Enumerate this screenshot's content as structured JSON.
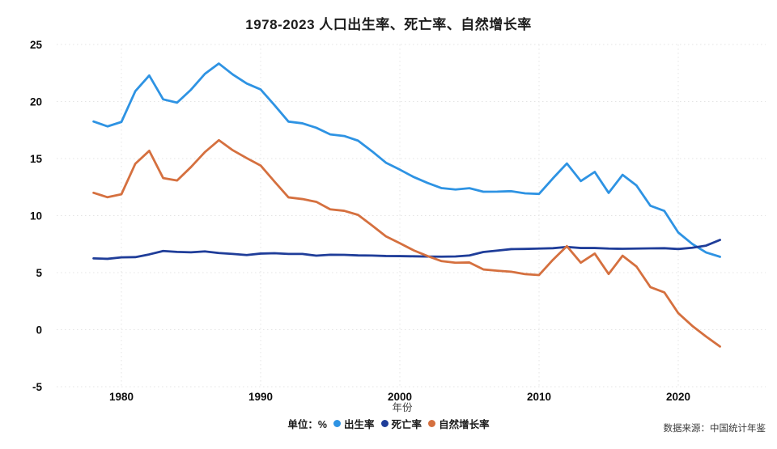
{
  "title": "1978-2023 人口出生率、死亡率、自然增长率",
  "source_note": "数据来源：中国统计年鉴",
  "legend": {
    "unit_label": "单位：%",
    "items": [
      {
        "label": "出生率",
        "color": "#2E93E3"
      },
      {
        "label": "死亡率",
        "color": "#1F3D99"
      },
      {
        "label": "自然增长率",
        "color": "#D5703F"
      }
    ]
  },
  "chart_data": {
    "type": "line",
    "title": "1978-2023 人口出生率、死亡率、自然增长率",
    "xlabel": "年份",
    "ylabel": "",
    "unit": "%",
    "grid": "dotted",
    "legend_position": "bottom-center",
    "ylim": [
      -5,
      25
    ],
    "yticks": [
      25,
      20,
      15,
      10,
      5,
      0,
      -5
    ],
    "xticks": [
      1980,
      1990,
      2000,
      2010,
      2020
    ],
    "x": [
      1978,
      1979,
      1980,
      1981,
      1982,
      1983,
      1984,
      1985,
      1986,
      1987,
      1988,
      1989,
      1990,
      1991,
      1992,
      1993,
      1994,
      1995,
      1996,
      1997,
      1998,
      1999,
      2000,
      2001,
      2002,
      2003,
      2004,
      2005,
      2006,
      2007,
      2008,
      2009,
      2010,
      2011,
      2012,
      2013,
      2014,
      2015,
      2016,
      2017,
      2018,
      2019,
      2020,
      2021,
      2022,
      2023
    ],
    "series": [
      {
        "name": "出生率",
        "color": "#2E93E3",
        "values": [
          18.25,
          17.82,
          18.21,
          20.91,
          22.28,
          20.19,
          19.9,
          21.04,
          22.43,
          23.33,
          22.37,
          21.58,
          21.06,
          19.68,
          18.24,
          18.09,
          17.7,
          17.12,
          16.98,
          16.57,
          15.64,
          14.64,
          14.03,
          13.38,
          12.86,
          12.41,
          12.29,
          12.4,
          12.09,
          12.1,
          12.14,
          11.95,
          11.9,
          13.27,
          14.57,
          13.03,
          13.83,
          11.99,
          13.57,
          12.64,
          10.86,
          10.41,
          8.52,
          7.52,
          6.77,
          6.39
        ]
      },
      {
        "name": "死亡率",
        "color": "#1F3D99",
        "values": [
          6.25,
          6.21,
          6.34,
          6.36,
          6.6,
          6.9,
          6.82,
          6.78,
          6.86,
          6.72,
          6.64,
          6.54,
          6.67,
          6.7,
          6.64,
          6.64,
          6.49,
          6.57,
          6.56,
          6.51,
          6.5,
          6.46,
          6.45,
          6.43,
          6.41,
          6.4,
          6.42,
          6.51,
          6.81,
          6.93,
          7.06,
          7.08,
          7.11,
          7.14,
          7.25,
          7.16,
          7.16,
          7.11,
          7.09,
          7.11,
          7.13,
          7.14,
          7.07,
          7.18,
          7.37,
          7.87
        ]
      },
      {
        "name": "自然增长率",
        "color": "#D5703F",
        "values": [
          12.0,
          11.61,
          11.87,
          14.55,
          15.68,
          13.29,
          13.08,
          14.26,
          15.57,
          16.61,
          15.73,
          15.04,
          14.39,
          12.98,
          11.6,
          11.45,
          11.21,
          10.55,
          10.42,
          10.06,
          9.14,
          8.18,
          7.58,
          6.95,
          6.45,
          6.01,
          5.87,
          5.89,
          5.28,
          5.17,
          5.08,
          4.87,
          4.79,
          6.13,
          7.32,
          5.87,
          6.67,
          4.88,
          6.48,
          5.53,
          3.73,
          3.27,
          1.45,
          0.34,
          -0.6,
          -1.48
        ]
      }
    ]
  }
}
